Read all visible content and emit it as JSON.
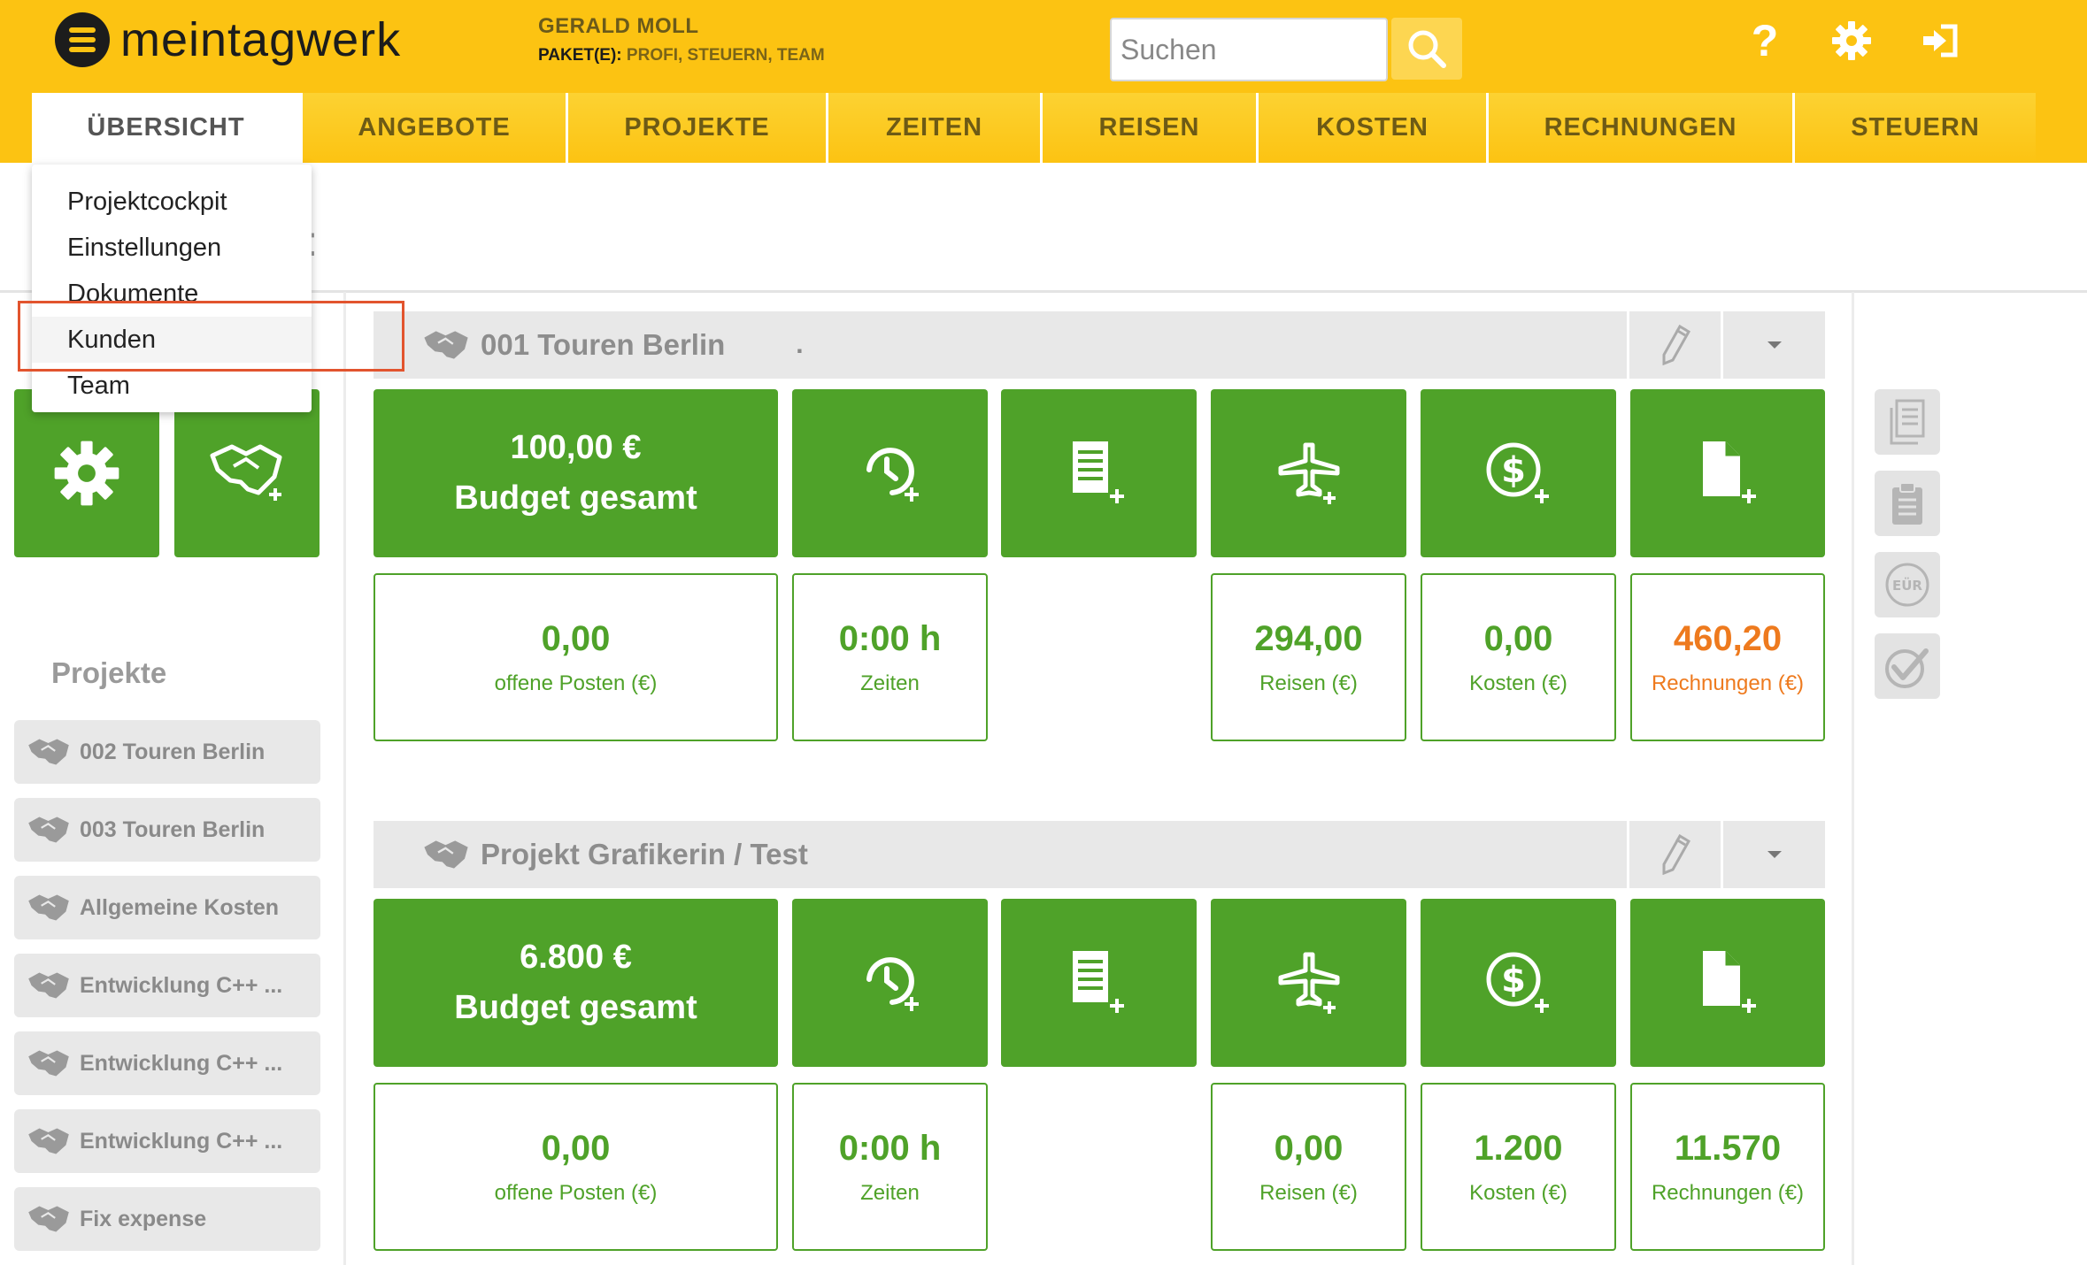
{
  "header": {
    "logo_text": "meintagwerk",
    "user_name": "GERALD MOLL",
    "package_label": "PAKET(E):",
    "package_value": "PROFI, STEUERN, TEAM",
    "search_placeholder": "Suchen",
    "help_symbol": "?",
    "accent_color": "#fcc312",
    "icons": [
      "search-icon",
      "help-icon",
      "gear-icon",
      "logout-icon"
    ]
  },
  "tabs": [
    {
      "label": "ÜBERSICHT",
      "active": true
    },
    {
      "label": "ANGEBOTE"
    },
    {
      "label": "PROJEKTE"
    },
    {
      "label": "ZEITEN"
    },
    {
      "label": "REISEN"
    },
    {
      "label": "KOSTEN"
    },
    {
      "label": "RECHNUNGEN"
    },
    {
      "label": "STEUERN"
    }
  ],
  "dropdown": {
    "items": [
      "Projektcockpit",
      "Einstellungen",
      "Dokumente",
      "Kunden",
      "Team"
    ],
    "highlighted": "Kunden"
  },
  "sidebar": {
    "projects_title": "Projekte",
    "projects": [
      "002 Touren Berlin",
      "003 Touren Berlin",
      "Allgemeine Kosten",
      "Entwicklung C++ ...",
      "Entwicklung C++ ...",
      "Entwicklung C++ ...",
      "Fix expense"
    ]
  },
  "projects": [
    {
      "title": "001 Touren Berlin",
      "dot": ".",
      "budget_value": "100,00 €",
      "budget_label": "Budget gesamt",
      "stats": {
        "offene_posten": {
          "value": "0,00",
          "label": "offene Posten (€)"
        },
        "zeiten": {
          "value": "0:00 h",
          "label": "Zeiten"
        },
        "reisen": {
          "value": "294,00",
          "label": "Reisen (€)"
        },
        "kosten": {
          "value": "0,00",
          "label": "Kosten (€)"
        },
        "rechnungen": {
          "value": "460,20",
          "label": "Rechnungen (€)"
        }
      }
    },
    {
      "title": "Projekt Grafikerin / Test",
      "budget_value": "6.800 €",
      "budget_label": "Budget gesamt",
      "stats": {
        "offene_posten": {
          "value": "0,00",
          "label": "offene Posten (€)"
        },
        "zeiten": {
          "value": "0:00 h",
          "label": "Zeiten"
        },
        "reisen": {
          "value": "0,00",
          "label": "Reisen (€)"
        },
        "kosten": {
          "value": "1.200",
          "label": "Kosten (€)"
        },
        "rechnungen": {
          "value": "11.570",
          "label": "Rechnungen (€)"
        }
      }
    }
  ],
  "colors": {
    "tile_green": "#4fa229",
    "warning_orange": "#ee7a1e"
  },
  "right_panel": {
    "icons": [
      "document-list-icon",
      "clipboard-icon",
      "eur-icon",
      "check-badge-icon"
    ],
    "eur_label": "EÜR"
  }
}
